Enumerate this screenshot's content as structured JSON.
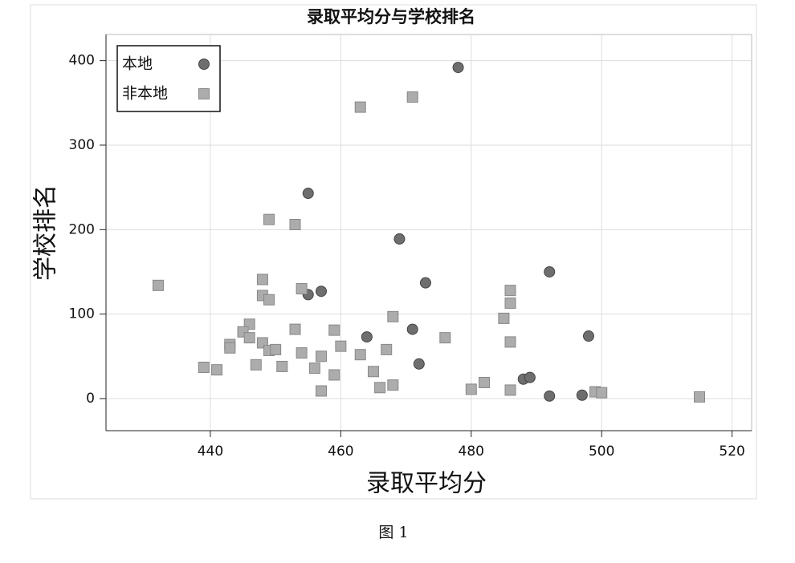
{
  "chart_data": {
    "type": "scatter",
    "title": "录取平均分与学校排名",
    "x_label": "录取平均分",
    "y_label": "学校排名",
    "xlim": [
      424,
      523
    ],
    "ylim": [
      -38,
      431
    ],
    "xticks": [
      440,
      460,
      480,
      500,
      520
    ],
    "yticks": [
      0,
      100,
      200,
      300,
      400
    ],
    "grid": true,
    "legend": "upper left",
    "series": [
      {
        "name": "本地",
        "marker": "circle",
        "color": "#6e6e6e",
        "x": [
          478,
          455,
          469,
          473,
          492,
          455,
          457,
          464,
          471,
          472,
          498,
          488,
          489,
          492,
          497
        ],
        "values": [
          392,
          243,
          189,
          137,
          150,
          123,
          127,
          73,
          82,
          41,
          74,
          23,
          25,
          3,
          4
        ]
      },
      {
        "name": "非本地",
        "marker": "square",
        "color": "#acacac",
        "x": [
          432,
          463,
          471,
          449,
          453,
          448,
          454,
          448,
          449,
          486,
          486,
          485,
          486,
          468,
          476,
          446,
          445,
          446,
          443,
          443,
          448,
          449,
          450,
          453,
          454,
          457,
          459,
          460,
          463,
          467,
          439,
          441,
          447,
          451,
          456,
          459,
          465,
          466,
          468,
          457,
          480,
          482,
          486,
          499,
          500,
          515
        ],
        "values": [
          134,
          345,
          357,
          212,
          206,
          141,
          130,
          122,
          117,
          128,
          113,
          95,
          67,
          97,
          72,
          88,
          79,
          72,
          64,
          60,
          66,
          57,
          58,
          82,
          54,
          50,
          81,
          62,
          52,
          58,
          37,
          34,
          40,
          38,
          36,
          28,
          32,
          13,
          16,
          9,
          11,
          19,
          10,
          8,
          7,
          2
        ]
      }
    ]
  },
  "figure_caption": "图 1"
}
